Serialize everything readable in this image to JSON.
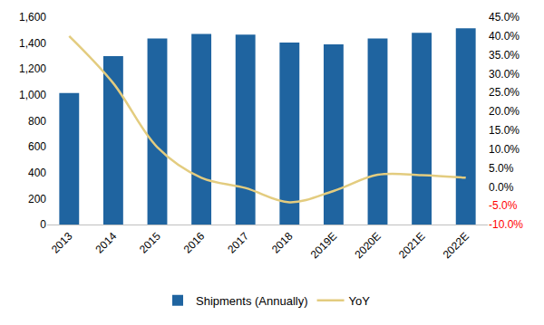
{
  "chart_data": {
    "type": "bar",
    "categories": [
      "2013",
      "2014",
      "2015",
      "2016",
      "2017",
      "2018",
      "2019E",
      "2020E",
      "2021E",
      "2022E"
    ],
    "series": [
      {
        "name": "Shipments (Annually)",
        "type": "bar",
        "color": "#1f64a0",
        "values": [
          1015,
          1300,
          1435,
          1470,
          1465,
          1405,
          1390,
          1435,
          1480,
          1515
        ]
      },
      {
        "name": "YoY",
        "type": "line",
        "color": "#e3cc7f",
        "axis": "y2",
        "line_style": "smooth",
        "values": [
          40,
          27.5,
          10.5,
          2.4,
          -0.3,
          -4.1,
          -1.1,
          3.2,
          3.1,
          2.4
        ]
      }
    ],
    "ylim": [
      0,
      1600
    ],
    "yticks": [
      0,
      200,
      400,
      600,
      800,
      {
        "value": 1000,
        "label": "1,000"
      },
      {
        "value": 1200,
        "label": "1,200"
      },
      {
        "value": 1400,
        "label": "1,400"
      },
      {
        "value": 1600,
        "label": "1,600"
      }
    ],
    "y2lim": [
      -10,
      45
    ],
    "y2ticks": [
      {
        "value": -10,
        "label": "-10.0%"
      },
      {
        "value": -5,
        "label": "-5.0%"
      },
      {
        "value": 0,
        "label": "0.0%"
      },
      {
        "value": 5,
        "label": "5.0%"
      },
      {
        "value": 10,
        "label": "10.0%"
      },
      {
        "value": 15,
        "label": "15.0%"
      },
      {
        "value": 20,
        "label": "20.0%"
      },
      {
        "value": 25,
        "label": "25.0%"
      },
      {
        "value": 30,
        "label": "30.0%"
      },
      {
        "value": 35,
        "label": "35.0%"
      },
      {
        "value": 40,
        "label": "40.0%"
      },
      {
        "value": 45,
        "label": "45.0%"
      }
    ],
    "grid": false,
    "legend": "bottom"
  }
}
